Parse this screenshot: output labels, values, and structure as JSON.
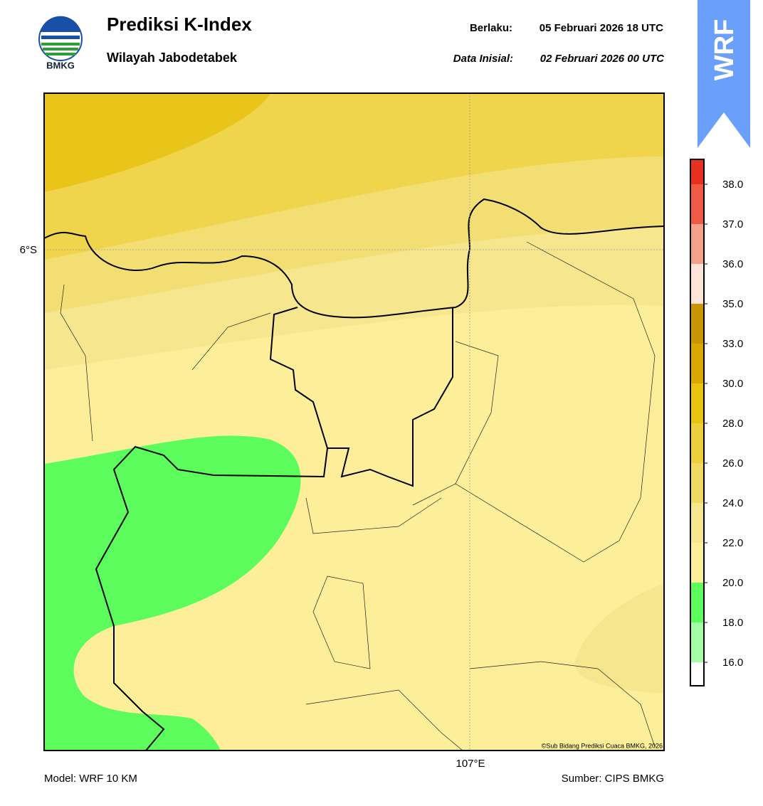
{
  "header": {
    "title": "Prediksi K-Index",
    "subtitle": "Wilayah Jabodetabek",
    "valid_label": "Berlaku:",
    "valid_time": "05 Februari 2026 18 UTC",
    "init_label": "Data Inisial:",
    "init_time": "02 Februari 2026 00 UTC",
    "logo_text": "BMKG",
    "badge": "WRF"
  },
  "map": {
    "lat_label": "6°S",
    "lon_label": "107°E",
    "copyright": "©Sub Bidang Prediksi Cuaca BMKG, 2026"
  },
  "colorbar": {
    "levels": [
      "38.0",
      "37.0",
      "36.0",
      "35.0",
      "33.0",
      "30.0",
      "28.0",
      "26.0",
      "24.0",
      "22.0",
      "20.0",
      "18.0",
      "16.0"
    ],
    "colors": [
      "#e8301e",
      "#ee5a45",
      "#f5a08a",
      "#fde3d8",
      "#c89600",
      "#daa800",
      "#e8c410",
      "#edcf3c",
      "#f1da64",
      "#f6e68e",
      "#fdef9a",
      "#5cfc5c",
      "#a4fca4",
      "#ffffff"
    ]
  },
  "footer": {
    "model": "Model: WRF 10 KM",
    "source": "Sumber: CIPS BMKG"
  }
}
